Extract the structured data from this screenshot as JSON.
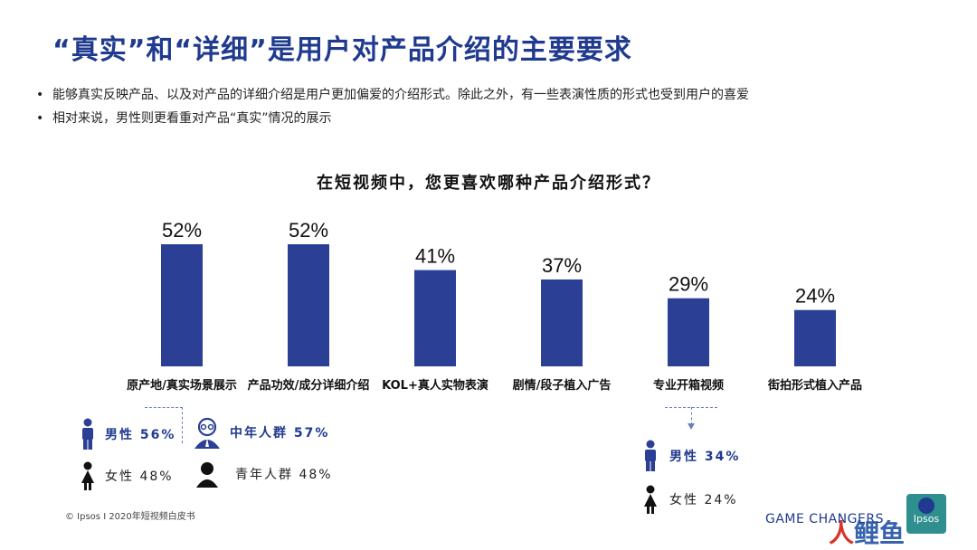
{
  "title": "“真实”和“详细”是用户对产品介绍的主要要求",
  "bullets": [
    "能够真实反映产品、以及对产品的详细介绍是用户更加偏爱的介绍形式。除此之外，有一些表演性质的形式也受到用户的喜爱",
    "相对来说，男性则更看重对产品“真实”情况的展示"
  ],
  "bullet_marker": "•",
  "chart_data": {
    "type": "bar",
    "title": "在短视频中，您更喜欢哪种产品介绍形式？",
    "categories": [
      "原产地/真实场景展示",
      "产品功效/成分详细介绍",
      "KOL+真人实物表演",
      "剧情/段子植入广告",
      "专业开箱视频",
      "街拍形式植入产品"
    ],
    "values": [
      52,
      52,
      41,
      37,
      29,
      24
    ],
    "value_labels": [
      "52%",
      "52%",
      "41%",
      "37%",
      "29%",
      "24%"
    ],
    "ylim": [
      0,
      52
    ],
    "bar_color": "#2b3f95"
  },
  "breakdowns": {
    "first": {
      "male": "男性 56%",
      "female": "女性 48%",
      "middle_age": "中年人群 57%",
      "young": "青年人群 48%"
    },
    "fifth": {
      "male": "男性 34%",
      "female": "女性 24%"
    }
  },
  "footer": "© Ipsos I 2020年短视频白皮书",
  "brand": {
    "tagline": "GAME CHANGERS",
    "logo_text": "Ipsos",
    "watermark_a": "人",
    "watermark_b": "鲤鱼",
    "logo_color": "#2f8f8f",
    "accent": "#1f3a8f"
  },
  "icons": [
    "male-icon",
    "female-icon",
    "middle-aged-man-icon",
    "young-person-icon",
    "ipsos-logo"
  ]
}
